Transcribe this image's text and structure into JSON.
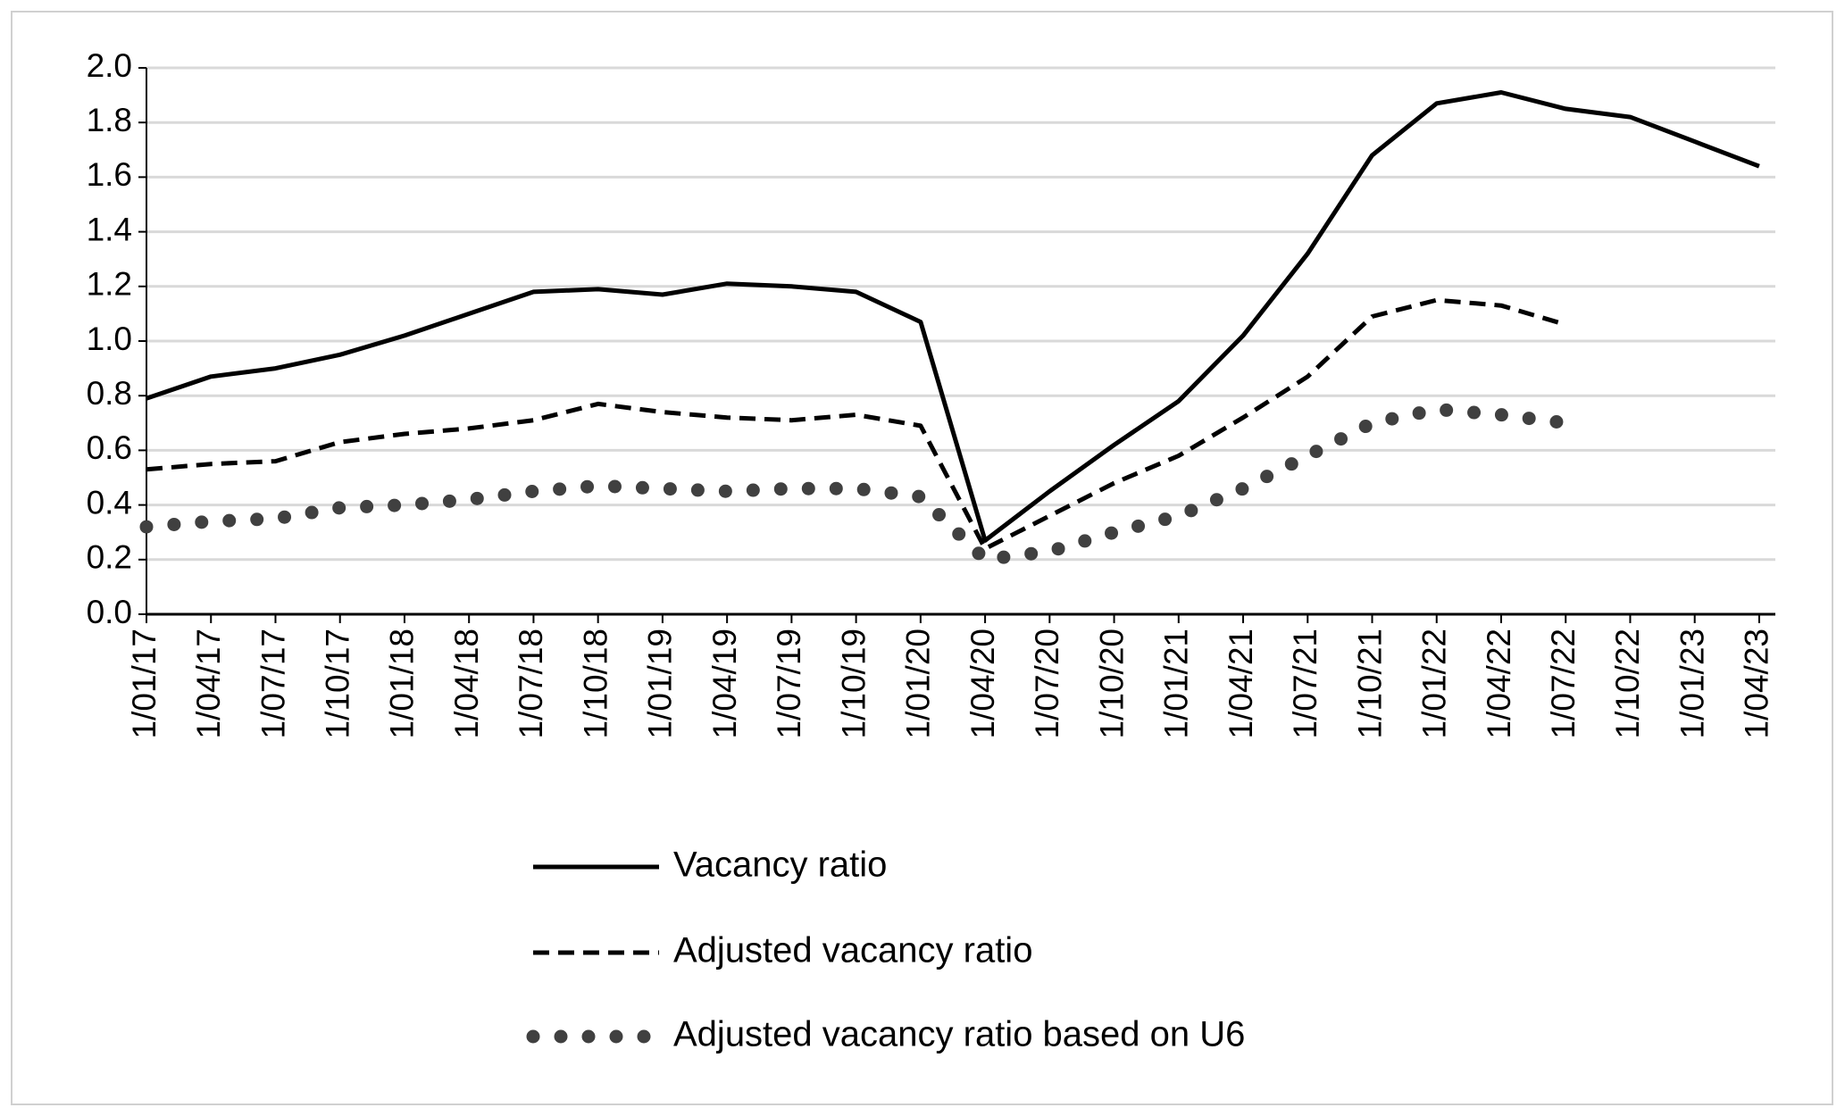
{
  "chart_data": {
    "type": "line",
    "categories": [
      "1/01/17",
      "1/04/17",
      "1/07/17",
      "1/10/17",
      "1/01/18",
      "1/04/18",
      "1/07/18",
      "1/10/18",
      "1/01/19",
      "1/04/19",
      "1/07/19",
      "1/10/19",
      "1/01/20",
      "1/04/20",
      "1/07/20",
      "1/10/20",
      "1/01/21",
      "1/04/21",
      "1/07/21",
      "1/10/21",
      "1/01/22",
      "1/04/22",
      "1/07/22",
      "1/10/22",
      "1/01/23",
      "1/04/23"
    ],
    "series": [
      {
        "name": "Vacancy ratio",
        "color": "#000000",
        "style": "solid",
        "values": [
          0.79,
          0.87,
          0.9,
          0.95,
          1.02,
          1.1,
          1.18,
          1.19,
          1.17,
          1.21,
          1.2,
          1.18,
          1.07,
          0.27,
          0.45,
          0.62,
          0.78,
          1.02,
          1.32,
          1.68,
          1.87,
          1.91,
          1.85,
          1.82,
          1.73,
          1.64
        ]
      },
      {
        "name": "Adjusted vacancy ratio",
        "color": "#000000",
        "style": "dashed",
        "values": [
          0.53,
          0.55,
          0.56,
          0.63,
          0.66,
          0.68,
          0.71,
          0.77,
          0.74,
          0.72,
          0.71,
          0.73,
          0.69,
          0.24,
          0.36,
          0.48,
          0.58,
          0.72,
          0.87,
          1.09,
          1.15,
          1.13,
          1.06,
          null,
          null,
          null
        ]
      },
      {
        "name": "Adjusted vacancy ratio based on U6",
        "color": "#404040",
        "style": "dotted",
        "values": [
          0.32,
          0.34,
          0.35,
          0.39,
          0.4,
          0.42,
          0.45,
          0.47,
          0.46,
          0.45,
          0.46,
          0.46,
          0.43,
          0.2,
          0.23,
          0.3,
          0.36,
          0.46,
          0.58,
          0.7,
          0.75,
          0.73,
          0.7,
          null,
          null,
          null
        ]
      }
    ],
    "ylim": [
      0,
      2.0
    ],
    "yticks": [
      {
        "value": 0,
        "label": "0.0"
      },
      {
        "value": 0.2,
        "label": "0.2"
      },
      {
        "value": 0.4,
        "label": "0.4"
      },
      {
        "value": 0.6,
        "label": "0.6"
      },
      {
        "value": 0.8,
        "label": "0.8"
      },
      {
        "value": 1.0,
        "label": "1.0"
      },
      {
        "value": 1.2,
        "label": "1.2"
      },
      {
        "value": 1.4,
        "label": "1.4"
      },
      {
        "value": 1.6,
        "label": "1.6"
      },
      {
        "value": 1.8,
        "label": "1.8"
      },
      {
        "value": 2.0,
        "label": "2.0"
      }
    ],
    "grid": true,
    "legend": "bottom"
  }
}
